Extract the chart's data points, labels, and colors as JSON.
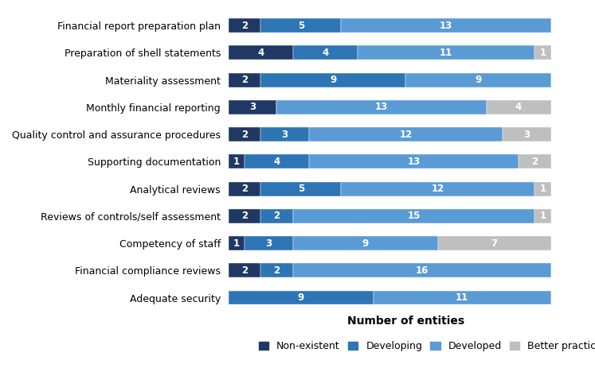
{
  "categories": [
    "Financial report preparation plan",
    "Preparation of shell statements",
    "Materiality assessment",
    "Monthly financial reporting",
    "Quality control and assurance procedures",
    "Supporting documentation",
    "Analytical reviews",
    "Reviews of controls/self assessment",
    "Competency of staff",
    "Financial compliance reviews",
    "Adequate security"
  ],
  "series": {
    "Non-existent": [
      2,
      4,
      2,
      3,
      2,
      1,
      2,
      2,
      1,
      2,
      0
    ],
    "Developing": [
      5,
      4,
      9,
      0,
      3,
      4,
      5,
      2,
      3,
      2,
      9
    ],
    "Developed": [
      13,
      11,
      9,
      13,
      12,
      13,
      12,
      15,
      9,
      16,
      11
    ],
    "Better practice": [
      0,
      1,
      0,
      4,
      3,
      2,
      1,
      1,
      7,
      0,
      0
    ]
  },
  "colors": {
    "Non-existent": "#1f3864",
    "Developing": "#2e75b6",
    "Developed": "#5b9bd5",
    "Better practice": "#bfbfbf"
  },
  "legend_labels": [
    "Non-existent",
    "Developing",
    "Developed",
    "Better practice"
  ],
  "xlabel": "Number of entities",
  "bar_height": 0.52,
  "label_fontsize": 8.5,
  "tick_fontsize": 9,
  "legend_fontsize": 9
}
